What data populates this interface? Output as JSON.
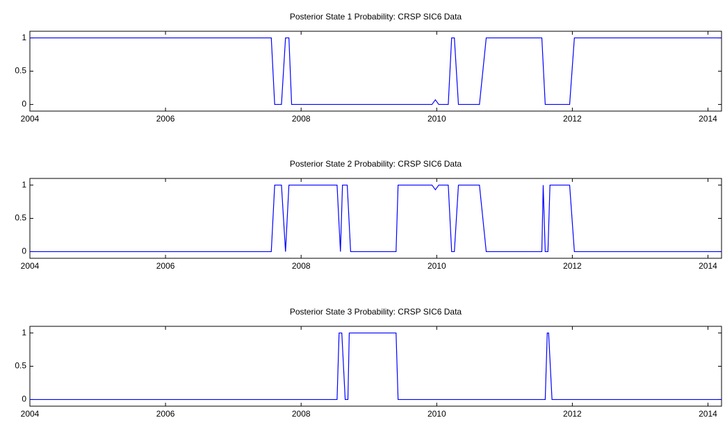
{
  "chart_data": [
    {
      "type": "line",
      "title": "Posterior State 1 Probability: CRSP SIC6 Data",
      "x": [
        2004,
        2007.56,
        2007.61,
        2007.71,
        2007.77,
        2007.82,
        2007.86,
        2009.93,
        2009.98,
        2010.03,
        2010.17,
        2010.22,
        2010.26,
        2010.32,
        2010.63,
        2010.73,
        2011.55,
        2011.6,
        2011.96,
        2012.03,
        2014.2
      ],
      "series": [
        {
          "color": "#0000ff",
          "values": [
            1,
            1,
            0,
            0,
            1,
            1,
            0,
            0,
            0.07,
            0,
            0,
            1,
            1,
            0,
            0,
            1,
            1,
            0,
            0,
            1,
            1
          ]
        }
      ],
      "xlim": [
        2004,
        2014.2
      ],
      "xticks": [
        2004,
        2006,
        2008,
        2010,
        2012,
        2014
      ],
      "ylim": [
        -0.1,
        1.1
      ],
      "yticks": [
        0,
        0.5,
        1
      ],
      "grid": false
    },
    {
      "type": "line",
      "title": "Posterior State 2 Probability: CRSP SIC6 Data",
      "x": [
        2004,
        2007.56,
        2007.61,
        2007.71,
        2007.77,
        2007.82,
        2008.53,
        2008.58,
        2008.61,
        2008.68,
        2008.73,
        2009.4,
        2009.43,
        2009.93,
        2009.98,
        2010.03,
        2010.17,
        2010.22,
        2010.26,
        2010.32,
        2010.63,
        2010.73,
        2011.55,
        2011.57,
        2011.6,
        2011.64,
        2011.67,
        2011.96,
        2012.03,
        2014.2
      ],
      "series": [
        {
          "color": "#0000ff",
          "values": [
            0,
            0,
            1,
            1,
            0,
            1,
            1,
            0,
            1,
            1,
            0,
            0,
            1,
            1,
            0.93,
            1,
            1,
            0,
            0,
            1,
            1,
            0,
            0,
            1,
            0,
            0,
            1,
            1,
            0,
            0
          ]
        }
      ],
      "xlim": [
        2004,
        2014.2
      ],
      "xticks": [
        2004,
        2006,
        2008,
        2010,
        2012,
        2014
      ],
      "ylim": [
        -0.1,
        1.1
      ],
      "yticks": [
        0,
        0.5,
        1
      ],
      "grid": false
    },
    {
      "type": "line",
      "title": "Posterior State 3 Probability: CRSP SIC6 Data",
      "x": [
        2004,
        2008.53,
        2008.56,
        2008.6,
        2008.65,
        2008.69,
        2008.71,
        2009.4,
        2009.43,
        2011.6,
        2011.63,
        2011.65,
        2011.7,
        2014.2
      ],
      "series": [
        {
          "color": "#0000ff",
          "values": [
            0,
            0,
            1,
            1,
            0,
            0,
            1,
            1,
            0,
            0,
            1,
            1,
            0,
            0
          ]
        }
      ],
      "xlim": [
        2004,
        2014.2
      ],
      "xticks": [
        2004,
        2006,
        2008,
        2010,
        2012,
        2014
      ],
      "ylim": [
        -0.1,
        1.1
      ],
      "yticks": [
        0,
        0.5,
        1
      ],
      "grid": false
    }
  ]
}
